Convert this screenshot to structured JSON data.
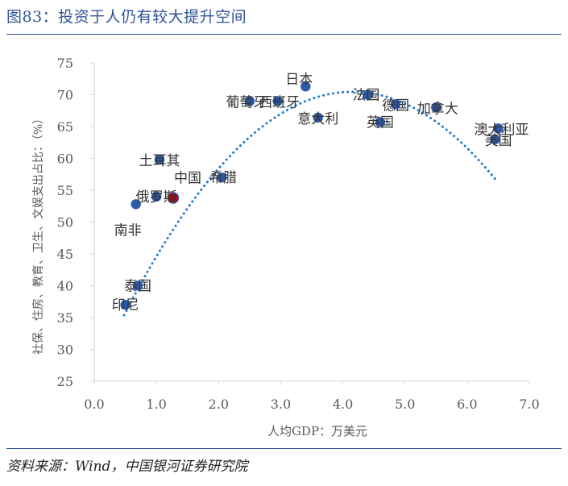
{
  "figure": {
    "title": "图83：投资于人仍有较大提升空间",
    "source": "资料来源：Wind，中国银河证券研究院"
  },
  "colors": {
    "accent": "#2f5597",
    "point": "#2e5aa8",
    "highlight": "#c00000",
    "trend": "#1f7bd4",
    "axis": "#d9d9d9",
    "text": "#595959"
  },
  "chart_data": {
    "type": "scatter",
    "title": "",
    "xlabel": "人均GDP：万美元",
    "ylabel": "社保、住房、教育、卫生、文娱支出占比：（%）",
    "xlim": [
      0,
      7
    ],
    "ylim": [
      25,
      75
    ],
    "x_ticks": [
      "0.0",
      "1.0",
      "2.0",
      "3.0",
      "4.0",
      "5.0",
      "6.0",
      "7.0"
    ],
    "y_ticks": [
      "25",
      "30",
      "35",
      "40",
      "45",
      "50",
      "55",
      "60",
      "65",
      "70",
      "75"
    ],
    "grid": false,
    "legend": "none",
    "points": [
      {
        "label": "日本",
        "x": 3.4,
        "y": 71.3
      },
      {
        "label": "葡萄牙",
        "x": 2.5,
        "y": 69.0
      },
      {
        "label": "西班牙",
        "x": 2.95,
        "y": 69.0
      },
      {
        "label": "意大利",
        "x": 3.6,
        "y": 66.4
      },
      {
        "label": "法国",
        "x": 4.4,
        "y": 70.0
      },
      {
        "label": "德国",
        "x": 4.85,
        "y": 68.5
      },
      {
        "label": "英国",
        "x": 4.6,
        "y": 65.7
      },
      {
        "label": "加拿大",
        "x": 5.5,
        "y": 68.0
      },
      {
        "label": "澳大利亚",
        "x": 6.5,
        "y": 64.7
      },
      {
        "label": "美国",
        "x": 6.45,
        "y": 63.0
      },
      {
        "label": "土耳其",
        "x": 1.05,
        "y": 59.8
      },
      {
        "label": "希腊",
        "x": 2.05,
        "y": 57.0
      },
      {
        "label": "中国",
        "x": 1.27,
        "y": 53.8,
        "highlight": true
      },
      {
        "label": "俄罗斯",
        "x": 1.0,
        "y": 54.0
      },
      {
        "label": "南非",
        "x": 0.67,
        "y": 52.8
      },
      {
        "label": "泰国",
        "x": 0.7,
        "y": 40.0
      },
      {
        "label": "印尼",
        "x": 0.5,
        "y": 37.0
      }
    ],
    "trendline": {
      "type": "polynomial",
      "order": 2,
      "x_range": [
        0.48,
        6.45
      ],
      "coefficients": [
        -2.6,
        21.6,
        25.6
      ]
    }
  }
}
